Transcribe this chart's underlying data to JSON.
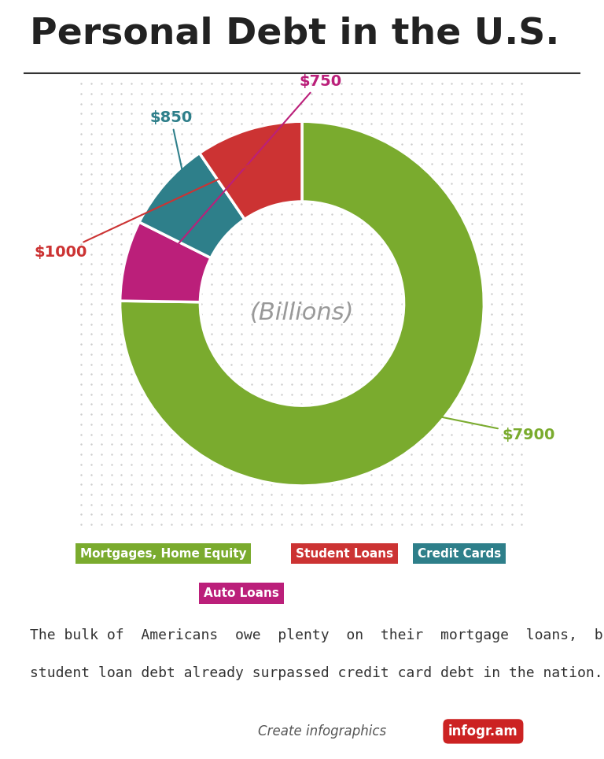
{
  "title": "Personal Debt in the U.S.",
  "plot_values": [
    7900,
    750,
    850,
    1000
  ],
  "plot_colors": [
    "#7aab2e",
    "#bb1f7a",
    "#2e7f8a",
    "#cc3333"
  ],
  "plot_labels": [
    "$7900",
    "$750",
    "$850",
    "$1000"
  ],
  "plot_label_colors": [
    "#7aab2e",
    "#bb1f7a",
    "#2e7f8a",
    "#cc3333"
  ],
  "categories": [
    "Mortgages, Home Equity",
    "Student Loans",
    "Credit Cards",
    "Auto Loans"
  ],
  "legend_colors": [
    "#7aab2e",
    "#cc3333",
    "#2e7f8a",
    "#bb1f7a"
  ],
  "center_text": "(Billions)",
  "body_text_line1": "The bulk of  Americans  owe  plenty  on  their  mortgage  loans,  but",
  "body_text_line2": "student loan debt already surpassed credit card debt in the nation.",
  "infogram_text": "Create infographics",
  "infogram_brand": "infogr.am"
}
